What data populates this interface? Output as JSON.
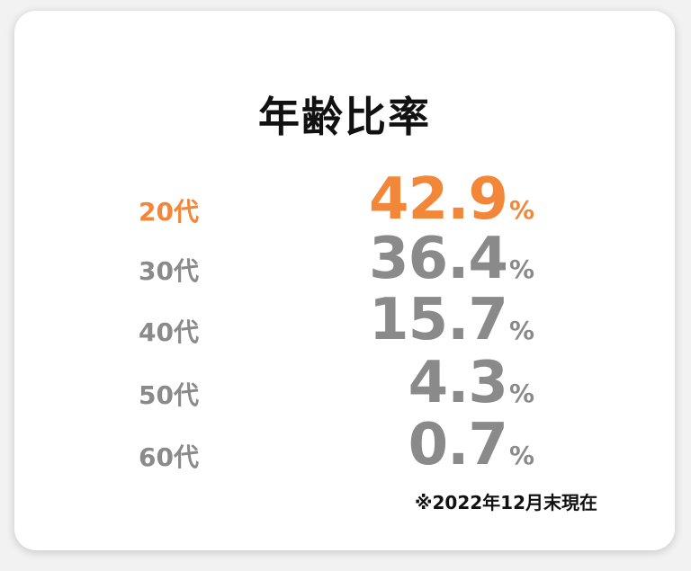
{
  "title": "年齢比率",
  "colors": {
    "highlight": "#f2873a",
    "muted": "#8a8a8a",
    "title": "#111111"
  },
  "rows": [
    {
      "age": "20代",
      "value": "42.9",
      "unit": "%",
      "highlight": true
    },
    {
      "age": "30代",
      "value": "36.4",
      "unit": "%",
      "highlight": false
    },
    {
      "age": "40代",
      "value": "15.7",
      "unit": "%",
      "highlight": false
    },
    {
      "age": "50代",
      "value": "4.3",
      "unit": "%",
      "highlight": false
    },
    {
      "age": "60代",
      "value": "0.7",
      "unit": "%",
      "highlight": false
    }
  ],
  "note": "※2022年12月末現在"
}
